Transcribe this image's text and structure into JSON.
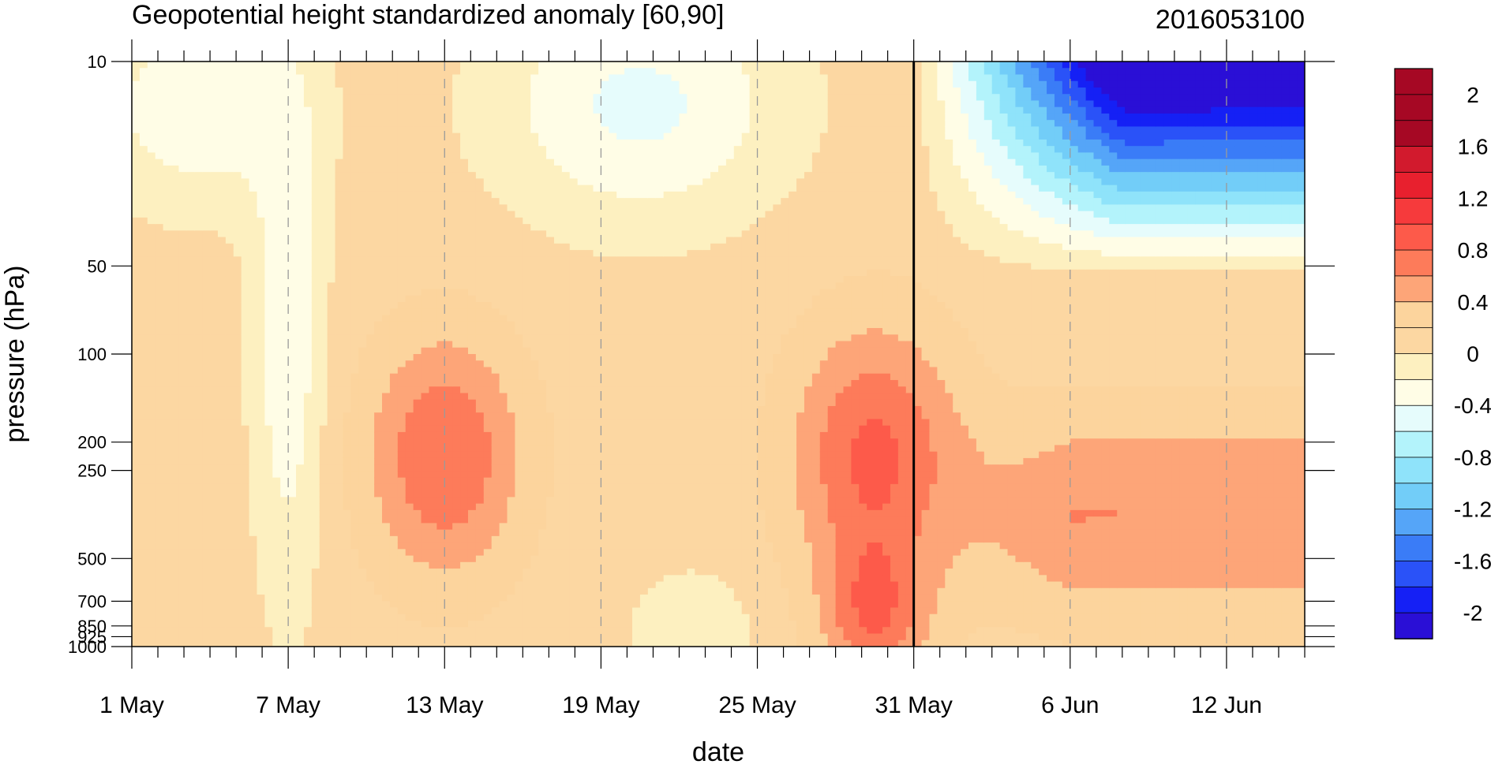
{
  "chart_data": {
    "type": "heatmap",
    "title": "Geopotential height standardized anomaly [60,90]",
    "run_label": "2016053100",
    "xlabel": "date",
    "ylabel": "pressure (hPa)",
    "x_tick_labels": [
      "1 May",
      "7 May",
      "13 May",
      "19 May",
      "25 May",
      "31 May",
      "6 Jun",
      "12 Jun"
    ],
    "x_tick_days": [
      0,
      6,
      12,
      18,
      24,
      30,
      36,
      42
    ],
    "x_range_days": [
      0,
      45
    ],
    "forecast_start_day": 30,
    "y_tick_labels": [
      "10",
      "50",
      "100",
      "200",
      "250",
      "500",
      "700",
      "850",
      "925",
      "1000"
    ],
    "y_tick_values": [
      10,
      50,
      100,
      200,
      250,
      500,
      700,
      850,
      925,
      1000
    ],
    "y_range": [
      1000,
      10
    ],
    "y_scale": "log",
    "colorbar_labels": [
      "2",
      "1.6",
      "1.2",
      "0.8",
      "0.4",
      "0",
      "-0.4",
      "-0.8",
      "-1.2",
      "-1.6",
      "-2"
    ],
    "colorbar_levels": [
      -2.2,
      -2.0,
      -1.8,
      -1.6,
      -1.4,
      -1.2,
      -1.0,
      -0.8,
      -0.6,
      -0.4,
      -0.2,
      0.0,
      0.2,
      0.4,
      0.6,
      0.8,
      1.0,
      1.2,
      1.4,
      1.6,
      1.8,
      2.0,
      2.2
    ],
    "colorbar_colors": [
      "#2a0fd6",
      "#1520f5",
      "#2a52f8",
      "#3a7cf7",
      "#55a5f8",
      "#72cdf8",
      "#8fe3fa",
      "#b3f3fb",
      "#e6fcfc",
      "#fffde6",
      "#fdf0c0",
      "#fcd7a2",
      "#fcd49d",
      "#fda578",
      "#fd7b5a",
      "#fd5a4a",
      "#f63a3c",
      "#e8202e",
      "#d21a2d",
      "#a60824",
      "#a60824",
      "#a60824"
    ],
    "grid": "dashed vertical lines at x ticks",
    "legend": "colorbar right"
  }
}
